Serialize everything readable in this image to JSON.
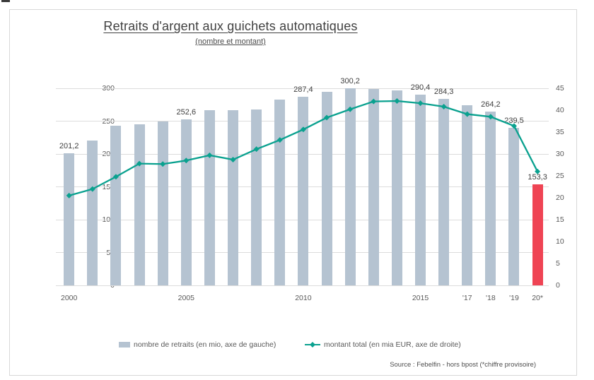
{
  "header": {
    "title": "Retraits d'argent aux guichets automatiques",
    "subtitle": "(nombre et montant)"
  },
  "legend": {
    "bar_label": "nombre de retraits (en mio, axe de gauche)",
    "line_label": "montant total (en mia EUR, axe de droite)"
  },
  "source": "Source : Febelfin - hors bpost (*chiffre provisoire)",
  "colors": {
    "bar": "#b5c3d1",
    "bar_highlight": "#ef4454",
    "line": "#0aa18f",
    "grid": "#dcdcdc",
    "axis_text": "#595959",
    "label_text": "#404040"
  },
  "chart_data": {
    "type": "bar+line",
    "title": "Retraits d'argent aux guichets automatiques",
    "subtitle": "(nombre et montant)",
    "x": [
      2000,
      2001,
      2002,
      2003,
      2004,
      2005,
      2006,
      2007,
      2008,
      2009,
      2010,
      2011,
      2012,
      2013,
      2014,
      2015,
      2016,
      2017,
      2018,
      2019,
      2020
    ],
    "series": [
      {
        "name": "nombre de retraits (en mio, axe de gauche)",
        "type": "bar",
        "axis": "left",
        "values": [
          201.2,
          220,
          243,
          245,
          249,
          252.6,
          267,
          267,
          268,
          283,
          287.4,
          295,
          300.2,
          299,
          297,
          290.4,
          284.3,
          274,
          264.2,
          239.5,
          153.3
        ],
        "highlight_index": 20
      },
      {
        "name": "montant total (en mia EUR, axe de droite)",
        "type": "line",
        "axis": "right",
        "values": [
          20.5,
          22,
          24.8,
          27.8,
          27.7,
          28.5,
          29.7,
          28.7,
          31.1,
          33.2,
          35.6,
          38.3,
          40.2,
          42,
          42.1,
          41.6,
          40.8,
          39.1,
          38.5,
          36.4,
          26
        ]
      }
    ],
    "bar_value_labels": {
      "0": "201,2",
      "5": "252,6",
      "10": "287,4",
      "12": "300,2",
      "15": "290,4",
      "16": "284,3",
      "18": "264,2",
      "19": "239,5",
      "20": "153,3"
    },
    "x_tick_labels": [
      {
        "index": 0,
        "label": "2000"
      },
      {
        "index": 5,
        "label": "2005"
      },
      {
        "index": 10,
        "label": "2010"
      },
      {
        "index": 15,
        "label": "2015"
      },
      {
        "index": 17,
        "label": "'17"
      },
      {
        "index": 18,
        "label": "'18"
      },
      {
        "index": 19,
        "label": "'19"
      },
      {
        "index": 20,
        "label": "20*"
      }
    ],
    "left_axis": {
      "min": 0,
      "max": 300,
      "ticks": [
        0,
        50,
        100,
        150,
        200,
        250,
        300
      ]
    },
    "right_axis": {
      "min": 0,
      "max": 45,
      "ticks": [
        0,
        5,
        10,
        15,
        20,
        25,
        30,
        35,
        40,
        45
      ]
    },
    "grid": true,
    "legend_position": "bottom"
  }
}
